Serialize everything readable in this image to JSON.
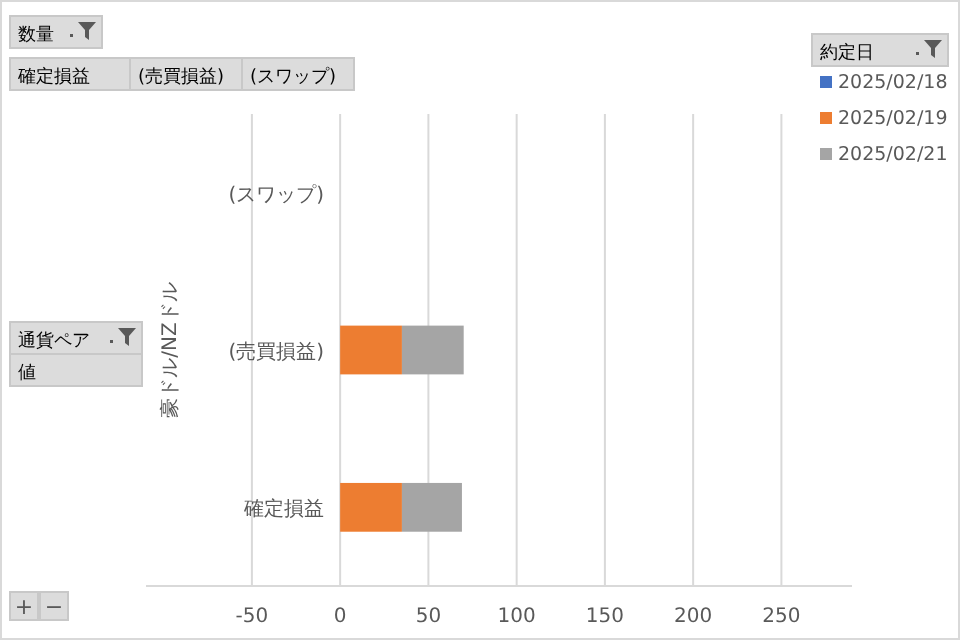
{
  "chart_data": {
    "type": "bar",
    "orientation": "horizontal",
    "stacked": true,
    "ylabel": "豪ドル/NZドル",
    "legend_title": "約定日",
    "categories": [
      "(スワップ)",
      "(売買損益)",
      "確定損益"
    ],
    "series": [
      {
        "name": "2025/02/18",
        "color": "#4472c4",
        "values": [
          null,
          null,
          null
        ]
      },
      {
        "name": "2025/02/19",
        "color": "#ed7d31",
        "values": [
          null,
          35,
          35
        ]
      },
      {
        "name": "2025/02/21",
        "color": "#a5a5a5",
        "values": [
          null,
          35,
          34
        ]
      }
    ],
    "xlim": [
      -110,
      290
    ],
    "xticks": [
      -50,
      0,
      50,
      100,
      150,
      200,
      250
    ],
    "grid": "x",
    "legend": "top right",
    "annotations": [
      "数量",
      "確定損益",
      "(売買損益)",
      "(スワップ)",
      "通貨ペア",
      "値",
      "+",
      "−"
    ]
  }
}
